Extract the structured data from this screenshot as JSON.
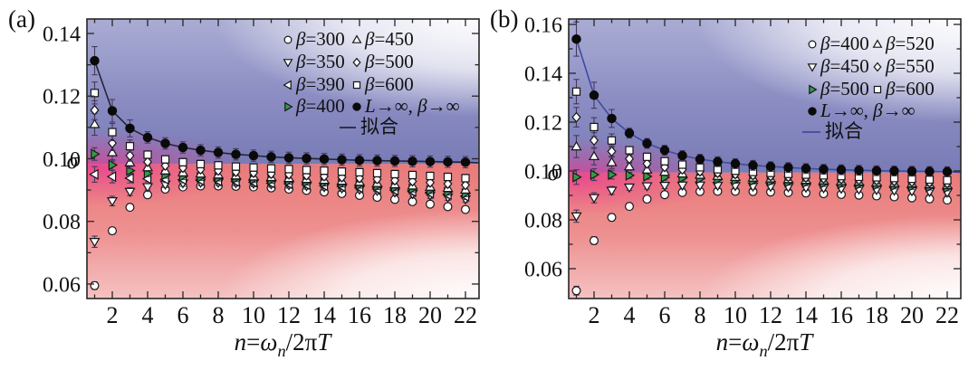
{
  "figure": {
    "background": "#ffffff",
    "panel_a_label": "(a)",
    "panel_b_label": "(b)"
  },
  "chart_data": [
    {
      "panel_label": "(a)",
      "type": "scatter",
      "ylabel": "σ",
      "xlabel_runs": [
        {
          "t": "n",
          "i": 1
        },
        {
          "t": "=",
          "i": 0
        },
        {
          "t": "ω",
          "i": 1
        },
        {
          "t": "n",
          "i": 1,
          "sub": 1
        },
        {
          "t": "/2π",
          "i": 0
        },
        {
          "t": "T",
          "i": 1
        }
      ],
      "x_range": [
        0.55,
        22.8
      ],
      "y_range": [
        0.0555,
        0.1455
      ],
      "x_major_ticks": [
        2,
        4,
        6,
        8,
        10,
        12,
        14,
        16,
        18,
        20,
        22
      ],
      "x_tick_labels": [
        "2",
        "4",
        "6",
        "8",
        "10",
        "12",
        "14",
        "16",
        "18",
        "20",
        "22"
      ],
      "x_minor_ticks": [
        1,
        3,
        5,
        7,
        9,
        11,
        13,
        15,
        17,
        19,
        21
      ],
      "y_tick_values": [
        0.14,
        0.12,
        0.1,
        0.08,
        0.06
      ],
      "y_tick_labels": [
        "0.14",
        "0.12",
        "0.10",
        "0.08",
        "0.06"
      ],
      "y_minor_ticks": [
        0.13,
        0.11,
        0.09,
        0.07
      ],
      "x": [
        1,
        2,
        3,
        4,
        5,
        6,
        7,
        8,
        9,
        10,
        11,
        12,
        13,
        14,
        15,
        16,
        17,
        18,
        19,
        20,
        21,
        22
      ],
      "series": [
        {
          "name": "β=300",
          "marker": "circle",
          "fill": "#ffffff",
          "err1": 0.0012,
          "err": 0.0008,
          "values": [
            0.0595,
            0.077,
            0.0845,
            0.0885,
            0.0903,
            0.091,
            0.0913,
            0.0913,
            0.0912,
            0.091,
            0.0907,
            0.0903,
            0.0899,
            0.0894,
            0.0889,
            0.0883,
            0.0877,
            0.087,
            0.0863,
            0.0855,
            0.0847,
            0.0838
          ]
        },
        {
          "name": "β=350",
          "marker": "triangle-down",
          "fill": "#ffffff",
          "err1": 0.0018,
          "err": 0.001,
          "values": [
            0.0735,
            0.0865,
            0.0895,
            0.091,
            0.0918,
            0.0922,
            0.0924,
            0.0924,
            0.0923,
            0.0921,
            0.0919,
            0.0916,
            0.0913,
            0.091,
            0.0906,
            0.0902,
            0.0898,
            0.0893,
            0.0888,
            0.0883,
            0.0877,
            0.0871
          ]
        },
        {
          "name": "β=390",
          "marker": "triangle-left",
          "fill": "#ffffff",
          "err1": 0.0025,
          "err": 0.001,
          "values": [
            0.095,
            0.0943,
            0.0938,
            0.0936,
            0.0934,
            0.0933,
            0.0931,
            0.0929,
            0.0927,
            0.0925,
            0.0922,
            0.092,
            0.0917,
            0.0914,
            0.0911,
            0.0907,
            0.0903,
            0.0899,
            0.0895,
            0.089,
            0.0885,
            0.088
          ]
        },
        {
          "name": "β=400",
          "marker": "triangle-right",
          "fill": "#2f9e44",
          "err1": 0.002,
          "err": 0.001,
          "values": [
            0.1015,
            0.098,
            0.0962,
            0.0953,
            0.0948,
            0.0944,
            0.0941,
            0.0939,
            0.0937,
            0.0934,
            0.0932,
            0.0929,
            0.0926,
            0.0923,
            0.092,
            0.0916,
            0.0912,
            0.0908,
            0.0904,
            0.0899,
            0.0894,
            0.0889
          ]
        },
        {
          "name": "β=450",
          "marker": "triangle-up",
          "fill": "#ffffff",
          "err1": 0.0035,
          "err": 0.0012,
          "values": [
            0.111,
            0.102,
            0.0988,
            0.0972,
            0.0962,
            0.0956,
            0.0952,
            0.0949,
            0.0946,
            0.0943,
            0.0941,
            0.0938,
            0.0935,
            0.0932,
            0.0929,
            0.0926,
            0.0922,
            0.0918,
            0.0914,
            0.091,
            0.0906,
            0.0901
          ]
        },
        {
          "name": "β=500",
          "marker": "diamond",
          "fill": "#ffffff",
          "err1": 0.003,
          "err": 0.0012,
          "values": [
            0.1155,
            0.105,
            0.101,
            0.099,
            0.0978,
            0.0971,
            0.0966,
            0.0962,
            0.0958,
            0.0955,
            0.0952,
            0.095,
            0.0947,
            0.0944,
            0.0941,
            0.0938,
            0.0935,
            0.0931,
            0.0928,
            0.0924,
            0.092,
            0.0916
          ]
        },
        {
          "name": "β=600",
          "marker": "square",
          "fill": "#ffffff",
          "err1": 0.0035,
          "err": 0.0012,
          "values": [
            0.121,
            0.1085,
            0.104,
            0.1013,
            0.0998,
            0.0989,
            0.0983,
            0.0979,
            0.0975,
            0.0972,
            0.0969,
            0.0967,
            0.0964,
            0.0962,
            0.0959,
            0.0957,
            0.0954,
            0.0951,
            0.0948,
            0.0945,
            0.0942,
            0.0938
          ]
        },
        {
          "name": "L→∞, β→∞",
          "marker": "filled-circle",
          "fill": "#0a0a0a",
          "err1": 0.0045,
          "err": 0.0018,
          "values": [
            0.1313,
            0.1153,
            0.1097,
            0.1068,
            0.1049,
            0.1036,
            0.1027,
            0.102,
            0.1014,
            0.101,
            0.1006,
            0.1003,
            0.1001,
            0.0999,
            0.0997,
            0.0995,
            0.0994,
            0.0993,
            0.0992,
            0.0991,
            0.099,
            0.0989
          ]
        }
      ],
      "fit": {
        "label": "拟合",
        "color": "#26243a",
        "asymptote": 0.0985
      },
      "legend": {
        "col1": [
          0,
          1,
          2,
          3
        ],
        "col2": [
          4,
          5,
          6,
          7
        ],
        "below": [],
        "fit_under": "col2"
      },
      "background_colors": {
        "blue_top": "#aaacd4",
        "blue_bottom": "#797bb6",
        "red_top": "#e97a7a",
        "red_bottom": "#f5c2c2",
        "magenta": "#e93d92",
        "boundary_sigma": 0.0983
      }
    },
    {
      "panel_label": "(b)",
      "type": "scatter",
      "ylabel": "σ",
      "xlabel_runs": [
        {
          "t": "n",
          "i": 1
        },
        {
          "t": "=",
          "i": 0
        },
        {
          "t": "ω",
          "i": 1
        },
        {
          "t": "n",
          "i": 1,
          "sub": 1
        },
        {
          "t": "/2π",
          "i": 0
        },
        {
          "t": "T",
          "i": 1
        }
      ],
      "x_range": [
        0.55,
        22.8
      ],
      "y_range": [
        0.0478,
        0.1622
      ],
      "x_major_ticks": [
        2,
        4,
        6,
        8,
        10,
        12,
        14,
        16,
        18,
        20,
        22
      ],
      "x_tick_labels": [
        "2",
        "4",
        "6",
        "8",
        "10",
        "12",
        "14",
        "16",
        "18",
        "20",
        "22"
      ],
      "x_minor_ticks": [
        1,
        3,
        5,
        7,
        9,
        11,
        13,
        15,
        17,
        19,
        21
      ],
      "y_tick_values": [
        0.16,
        0.14,
        0.12,
        0.1,
        0.08,
        0.06
      ],
      "y_tick_labels": [
        "0.16",
        "0.14",
        "0.12",
        "0.10",
        "0.08",
        "0.06"
      ],
      "y_minor_ticks": [
        0.15,
        0.13,
        0.11,
        0.09,
        0.07
      ],
      "x": [
        1,
        2,
        3,
        4,
        5,
        6,
        7,
        8,
        9,
        10,
        11,
        12,
        13,
        14,
        15,
        16,
        17,
        18,
        19,
        20,
        21,
        22
      ],
      "series": [
        {
          "name": "β=400",
          "marker": "circle",
          "fill": "#ffffff",
          "err1": 0.0018,
          "err": 0.001,
          "values": [
            0.051,
            0.0715,
            0.081,
            0.0855,
            0.0885,
            0.0903,
            0.0912,
            0.0916,
            0.0917,
            0.0917,
            0.0916,
            0.0914,
            0.0912,
            0.091,
            0.0907,
            0.0904,
            0.0901,
            0.0898,
            0.0894,
            0.089,
            0.0886,
            0.0881
          ]
        },
        {
          "name": "β=450",
          "marker": "triangle-down",
          "fill": "#ffffff",
          "err1": 0.0025,
          "err": 0.0012,
          "values": [
            0.0815,
            0.089,
            0.092,
            0.0933,
            0.0938,
            0.094,
            0.0941,
            0.0941,
            0.094,
            0.0939,
            0.0937,
            0.0936,
            0.0934,
            0.0932,
            0.093,
            0.0928,
            0.0925,
            0.0923,
            0.092,
            0.0918,
            0.0915,
            0.0912
          ]
        },
        {
          "name": "β=500",
          "marker": "triangle-right",
          "fill": "#2f9e44",
          "err1": 0.003,
          "err": 0.0012,
          "values": [
            0.0975,
            0.0985,
            0.0985,
            0.0982,
            0.0978,
            0.0974,
            0.0971,
            0.0968,
            0.0965,
            0.0962,
            0.0959,
            0.0957,
            0.0954,
            0.0952,
            0.0949,
            0.0947,
            0.0944,
            0.0942,
            0.0939,
            0.0937,
            0.0934,
            0.0931
          ]
        },
        {
          "name": "β=520",
          "marker": "triangle-up",
          "fill": "#ffffff",
          "err1": 0.0045,
          "err": 0.0015,
          "values": [
            0.11,
            0.106,
            0.1035,
            0.1018,
            0.1005,
            0.0996,
            0.0989,
            0.0984,
            0.0979,
            0.0975,
            0.0972,
            0.0969,
            0.0966,
            0.0963,
            0.0961,
            0.0958,
            0.0956,
            0.0953,
            0.095,
            0.0948,
            0.0945,
            0.0942
          ]
        },
        {
          "name": "β=550",
          "marker": "diamond",
          "fill": "#ffffff",
          "err1": 0.004,
          "err": 0.0015,
          "values": [
            0.122,
            0.1125,
            0.108,
            0.105,
            0.103,
            0.1016,
            0.1006,
            0.0998,
            0.0992,
            0.0987,
            0.0983,
            0.0979,
            0.0976,
            0.0973,
            0.097,
            0.0967,
            0.0964,
            0.0962,
            0.0959,
            0.0956,
            0.0953,
            0.095
          ]
        },
        {
          "name": "β=600",
          "marker": "square",
          "fill": "#ffffff",
          "err1": 0.005,
          "err": 0.0015,
          "values": [
            0.1325,
            0.118,
            0.1125,
            0.1085,
            0.1058,
            0.104,
            0.1026,
            0.1015,
            0.1007,
            0.1001,
            0.0996,
            0.0992,
            0.0988,
            0.0985,
            0.0982,
            0.0979,
            0.0976,
            0.0974,
            0.0971,
            0.0968,
            0.0965,
            0.0962
          ]
        },
        {
          "name": "L→∞, β→∞",
          "marker": "filled-circle",
          "fill": "#0a0a0a",
          "err1": 0.007,
          "err": 0.002,
          "values": [
            0.154,
            0.131,
            0.1215,
            0.1155,
            0.1113,
            0.1085,
            0.1063,
            0.1048,
            0.1038,
            0.103,
            0.1023,
            0.1018,
            0.1014,
            0.101,
            0.1007,
            0.1005,
            0.1003,
            0.1001,
            0.1,
            0.0999,
            0.0998,
            0.0997
          ]
        }
      ],
      "fit": {
        "label": "拟合",
        "color": "#3f4ba0",
        "asymptote": 0.0995
      },
      "legend": {
        "col1": [
          0,
          1,
          2
        ],
        "col2": [
          3,
          4,
          5
        ],
        "below": [
          6
        ],
        "fit_under": "col1"
      },
      "background_colors": {
        "blue_top": "#aaacd4",
        "blue_bottom": "#797bb6",
        "red_top": "#e97a7a",
        "red_bottom": "#f5c2c2",
        "magenta": "#e93d92",
        "boundary_sigma": 0.0993
      }
    }
  ]
}
